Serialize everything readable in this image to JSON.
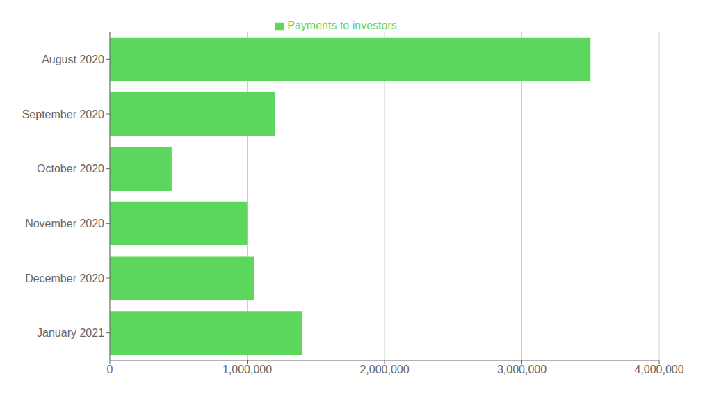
{
  "chart_data": {
    "type": "bar",
    "orientation": "horizontal",
    "categories": [
      "August 2020",
      "September 2020",
      "October 2020",
      "November 2020",
      "December 2020",
      "January 2021"
    ],
    "series": [
      {
        "name": "Payments to investors",
        "color": "#5CD65C",
        "values": [
          3500000,
          1200000,
          450000,
          1000000,
          1050000,
          1400000
        ]
      }
    ],
    "xlim": [
      0,
      4000000
    ],
    "xticks": [
      0,
      {
        "value": 1000000,
        "label": "1,000,000"
      },
      {
        "value": 2000000,
        "label": "2,000,000"
      },
      {
        "value": 3000000,
        "label": "3,000,000"
      },
      {
        "value": 4000000,
        "label": "4,000,000"
      }
    ],
    "grid": true,
    "legend": "top"
  }
}
